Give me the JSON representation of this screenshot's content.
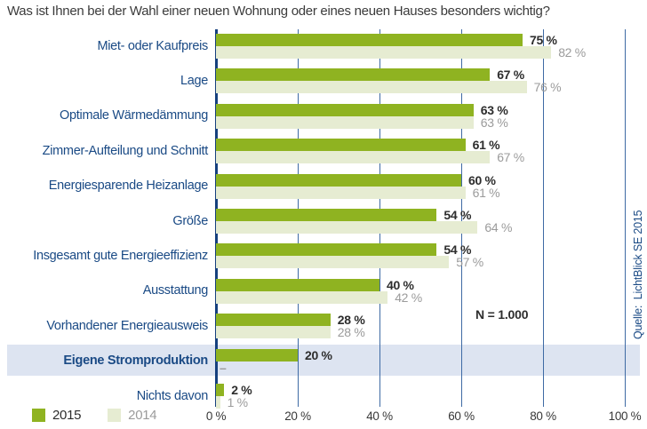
{
  "title": "Was ist Ihnen bei der Wahl einer neuen Wohnung oder eines neuen Hauses besonders wichtig?",
  "chart_data": {
    "type": "bar",
    "orientation": "horizontal",
    "title": "Was ist Ihnen bei der Wahl einer neuen Wohnung oder eines neuen Hauses besonders wichtig?",
    "categories": [
      "Miet- oder Kaufpreis",
      "Lage",
      "Optimale Wärmedämmung",
      "Zimmer-Aufteilung und Schnitt",
      "Energiesparende Heizanlage",
      "Größe",
      "Insgesamt gute Energieeffizienz",
      "Ausstattung",
      "Vorhandener Energieausweis",
      "Eigene Stromproduktion",
      "Nichts davon"
    ],
    "series": [
      {
        "name": "2015",
        "color": "#8fb321",
        "values": [
          75,
          67,
          63,
          61,
          60,
          54,
          54,
          40,
          28,
          20,
          2
        ]
      },
      {
        "name": "2014",
        "color": "#e6ecd2",
        "values": [
          82,
          76,
          63,
          67,
          61,
          64,
          57,
          42,
          28,
          null,
          1
        ]
      }
    ],
    "value_suffix": " %",
    "missing_value_label": "–",
    "highlight_category_index": 9,
    "xlim": [
      0,
      100
    ],
    "xticks": [
      0,
      20,
      40,
      60,
      80,
      100
    ],
    "xtick_labels": [
      "0 %",
      "20 %",
      "40 %",
      "60 %",
      "80 %",
      "100 %"
    ],
    "grid": "vertical",
    "legend_position": "bottom-left"
  },
  "annotations": {
    "sample_size": "N = 1.000",
    "source": "Quelle:  LichtBlick SE 2015"
  },
  "colors": {
    "bar_2015": "#8fb321",
    "bar_2014": "#e6ecd2",
    "gridline": "#3e6aa4",
    "axis_line": "#16407e",
    "highlight_band": "#dde4f1",
    "category_label": "#1a4a85",
    "value_2015": "#2d2d2d",
    "value_2014": "#9b9b9b",
    "title_text": "#3b3b3b"
  }
}
